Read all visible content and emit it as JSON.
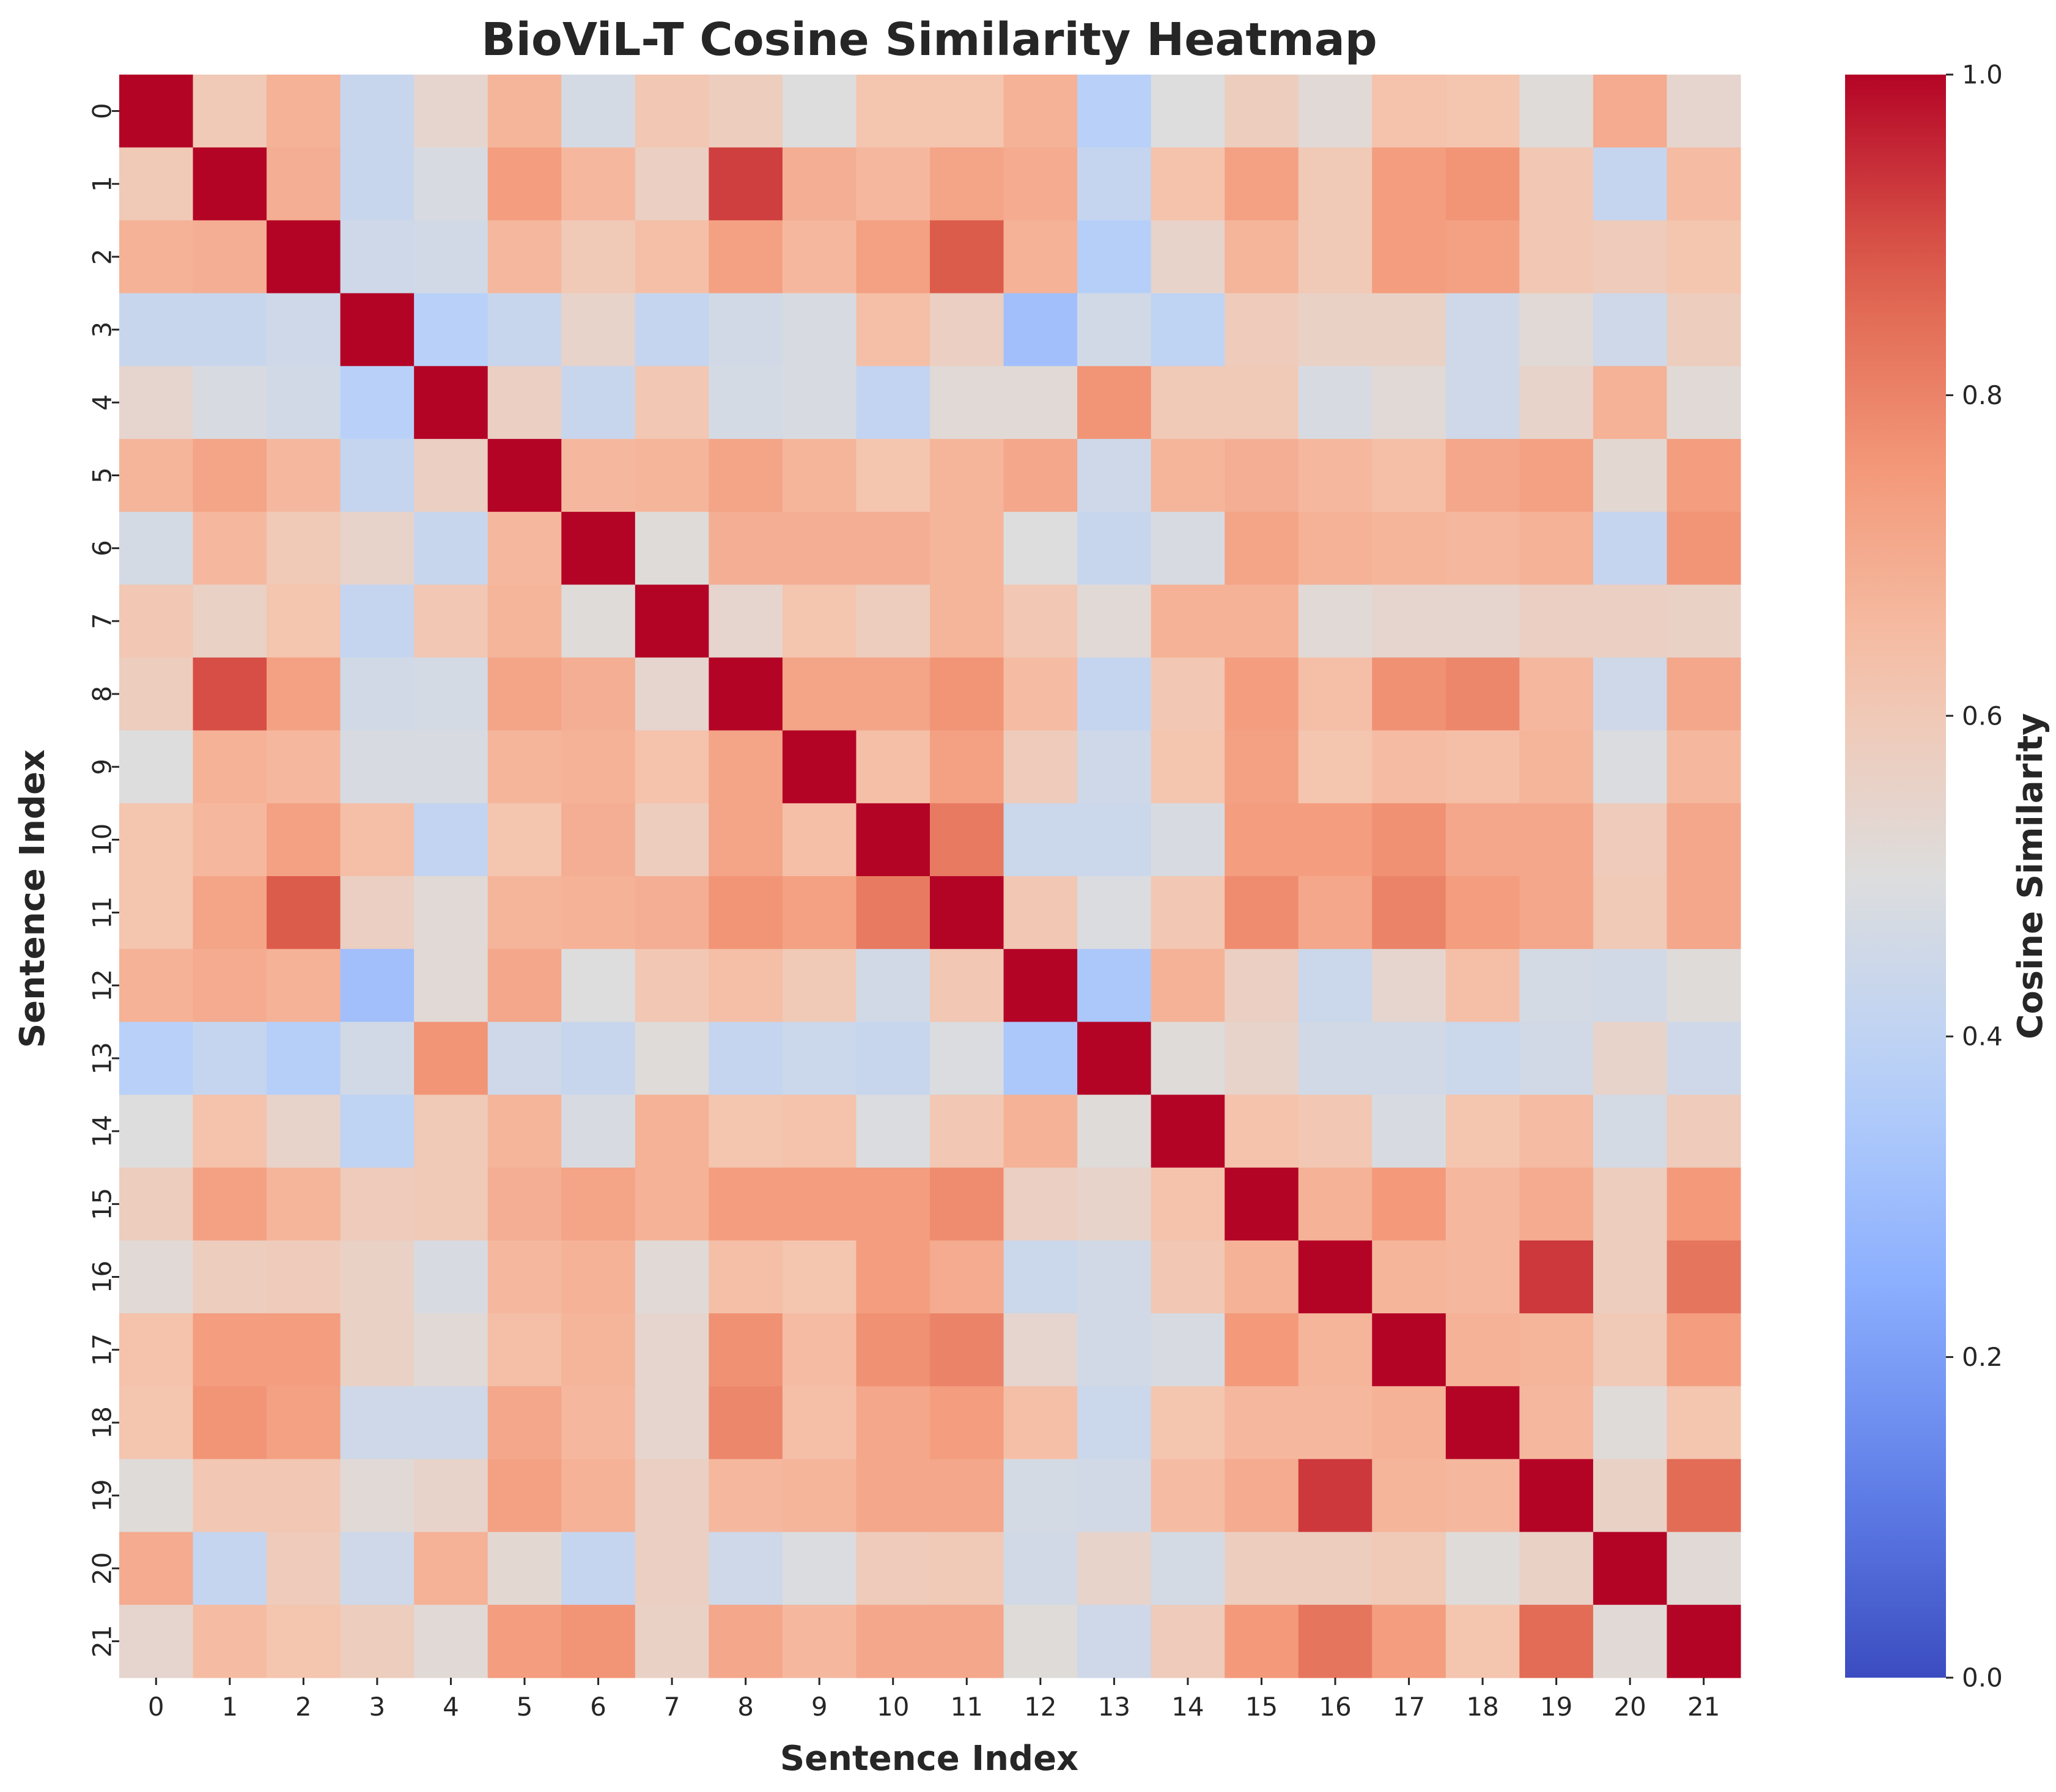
{
  "chart_data": {
    "type": "heatmap",
    "title": "BioViL-T Cosine Similarity Heatmap",
    "xlabel": "Sentence Index",
    "ylabel": "Sentence Index",
    "colorbar_label": "Cosine Similarity",
    "colormap": "coolwarm",
    "vmin": 0.0,
    "vmax": 1.0,
    "colorbar_ticks": [
      "0.0",
      "0.2",
      "0.4",
      "0.6",
      "0.8",
      "1.0"
    ],
    "colorbar_tick_values": [
      0.0,
      0.2,
      0.4,
      0.6,
      0.8,
      1.0
    ],
    "x_ticks": [
      "0",
      "1",
      "2",
      "3",
      "4",
      "5",
      "6",
      "7",
      "8",
      "9",
      "10",
      "11",
      "12",
      "13",
      "14",
      "15",
      "16",
      "17",
      "18",
      "19",
      "20",
      "21"
    ],
    "y_ticks": [
      "0",
      "1",
      "2",
      "3",
      "4",
      "5",
      "6",
      "7",
      "8",
      "9",
      "10",
      "11",
      "12",
      "13",
      "14",
      "15",
      "16",
      "17",
      "18",
      "19",
      "20",
      "21"
    ],
    "matrix": [
      [
        1.0,
        0.6,
        0.68,
        0.43,
        0.54,
        0.67,
        0.47,
        0.61,
        0.58,
        0.5,
        0.62,
        0.62,
        0.68,
        0.38,
        0.5,
        0.58,
        0.52,
        0.63,
        0.62,
        0.51,
        0.7,
        0.54
      ],
      [
        0.6,
        1.0,
        0.69,
        0.43,
        0.48,
        0.74,
        0.66,
        0.57,
        0.92,
        0.69,
        0.66,
        0.72,
        0.7,
        0.42,
        0.63,
        0.73,
        0.6,
        0.74,
        0.76,
        0.61,
        0.42,
        0.65
      ],
      [
        0.68,
        0.69,
        1.0,
        0.45,
        0.46,
        0.66,
        0.6,
        0.64,
        0.73,
        0.66,
        0.73,
        0.88,
        0.68,
        0.37,
        0.55,
        0.67,
        0.6,
        0.74,
        0.73,
        0.61,
        0.59,
        0.62
      ],
      [
        0.43,
        0.43,
        0.45,
        1.0,
        0.38,
        0.43,
        0.55,
        0.42,
        0.46,
        0.48,
        0.64,
        0.57,
        0.31,
        0.46,
        0.4,
        0.59,
        0.56,
        0.56,
        0.45,
        0.52,
        0.45,
        0.58
      ],
      [
        0.54,
        0.48,
        0.46,
        0.38,
        1.0,
        0.57,
        0.43,
        0.61,
        0.47,
        0.48,
        0.41,
        0.52,
        0.52,
        0.76,
        0.6,
        0.6,
        0.48,
        0.52,
        0.45,
        0.55,
        0.68,
        0.52
      ],
      [
        0.67,
        0.72,
        0.66,
        0.42,
        0.57,
        1.0,
        0.66,
        0.67,
        0.72,
        0.67,
        0.62,
        0.67,
        0.71,
        0.45,
        0.67,
        0.69,
        0.66,
        0.64,
        0.71,
        0.73,
        0.53,
        0.74
      ],
      [
        0.47,
        0.66,
        0.6,
        0.55,
        0.43,
        0.66,
        1.0,
        0.51,
        0.69,
        0.69,
        0.69,
        0.67,
        0.5,
        0.43,
        0.48,
        0.72,
        0.68,
        0.67,
        0.66,
        0.68,
        0.42,
        0.76
      ],
      [
        0.61,
        0.56,
        0.62,
        0.42,
        0.61,
        0.67,
        0.51,
        1.0,
        0.54,
        0.62,
        0.58,
        0.67,
        0.61,
        0.52,
        0.68,
        0.68,
        0.52,
        0.54,
        0.54,
        0.57,
        0.57,
        0.56
      ],
      [
        0.58,
        0.9,
        0.73,
        0.46,
        0.47,
        0.72,
        0.69,
        0.54,
        1.0,
        0.72,
        0.72,
        0.76,
        0.65,
        0.42,
        0.61,
        0.74,
        0.64,
        0.77,
        0.79,
        0.66,
        0.45,
        0.71
      ],
      [
        0.5,
        0.68,
        0.66,
        0.48,
        0.48,
        0.67,
        0.68,
        0.63,
        0.72,
        1.0,
        0.64,
        0.73,
        0.59,
        0.45,
        0.62,
        0.73,
        0.62,
        0.65,
        0.64,
        0.67,
        0.49,
        0.66
      ],
      [
        0.62,
        0.66,
        0.73,
        0.64,
        0.41,
        0.62,
        0.69,
        0.58,
        0.72,
        0.64,
        1.0,
        0.82,
        0.44,
        0.44,
        0.48,
        0.74,
        0.74,
        0.77,
        0.71,
        0.71,
        0.59,
        0.71
      ],
      [
        0.62,
        0.72,
        0.88,
        0.57,
        0.52,
        0.67,
        0.68,
        0.69,
        0.76,
        0.73,
        0.82,
        1.0,
        0.61,
        0.49,
        0.61,
        0.78,
        0.71,
        0.8,
        0.74,
        0.71,
        0.6,
        0.71
      ],
      [
        0.68,
        0.7,
        0.68,
        0.31,
        0.52,
        0.71,
        0.5,
        0.61,
        0.64,
        0.6,
        0.46,
        0.61,
        1.0,
        0.34,
        0.68,
        0.57,
        0.44,
        0.54,
        0.64,
        0.47,
        0.46,
        0.51
      ],
      [
        0.38,
        0.42,
        0.37,
        0.46,
        0.76,
        0.45,
        0.43,
        0.51,
        0.42,
        0.44,
        0.43,
        0.49,
        0.34,
        1.0,
        0.51,
        0.55,
        0.46,
        0.46,
        0.44,
        0.46,
        0.55,
        0.45
      ],
      [
        0.5,
        0.63,
        0.55,
        0.4,
        0.6,
        0.67,
        0.48,
        0.68,
        0.62,
        0.63,
        0.49,
        0.61,
        0.68,
        0.51,
        1.0,
        0.63,
        0.61,
        0.48,
        0.62,
        0.65,
        0.47,
        0.59
      ],
      [
        0.58,
        0.73,
        0.67,
        0.59,
        0.6,
        0.69,
        0.72,
        0.68,
        0.74,
        0.74,
        0.74,
        0.78,
        0.57,
        0.55,
        0.63,
        1.0,
        0.68,
        0.75,
        0.66,
        0.7,
        0.58,
        0.75
      ],
      [
        0.52,
        0.58,
        0.59,
        0.56,
        0.48,
        0.66,
        0.68,
        0.52,
        0.64,
        0.62,
        0.74,
        0.7,
        0.44,
        0.46,
        0.61,
        0.68,
        1.0,
        0.67,
        0.66,
        0.93,
        0.58,
        0.83
      ],
      [
        0.63,
        0.74,
        0.74,
        0.56,
        0.52,
        0.64,
        0.67,
        0.54,
        0.77,
        0.65,
        0.77,
        0.8,
        0.54,
        0.46,
        0.48,
        0.75,
        0.67,
        1.0,
        0.68,
        0.67,
        0.6,
        0.74
      ],
      [
        0.62,
        0.76,
        0.73,
        0.45,
        0.45,
        0.71,
        0.66,
        0.54,
        0.79,
        0.64,
        0.71,
        0.74,
        0.64,
        0.44,
        0.62,
        0.66,
        0.66,
        0.68,
        1.0,
        0.66,
        0.51,
        0.62
      ],
      [
        0.51,
        0.61,
        0.61,
        0.52,
        0.55,
        0.73,
        0.68,
        0.57,
        0.66,
        0.67,
        0.71,
        0.71,
        0.47,
        0.46,
        0.65,
        0.7,
        0.93,
        0.67,
        0.66,
        1.0,
        0.56,
        0.85
      ],
      [
        0.7,
        0.42,
        0.59,
        0.45,
        0.68,
        0.53,
        0.42,
        0.57,
        0.45,
        0.49,
        0.59,
        0.6,
        0.46,
        0.55,
        0.47,
        0.58,
        0.58,
        0.6,
        0.51,
        0.56,
        1.0,
        0.52
      ],
      [
        0.54,
        0.65,
        0.62,
        0.58,
        0.52,
        0.74,
        0.76,
        0.56,
        0.71,
        0.66,
        0.71,
        0.71,
        0.51,
        0.45,
        0.59,
        0.75,
        0.83,
        0.74,
        0.62,
        0.85,
        0.52,
        1.0
      ]
    ]
  }
}
